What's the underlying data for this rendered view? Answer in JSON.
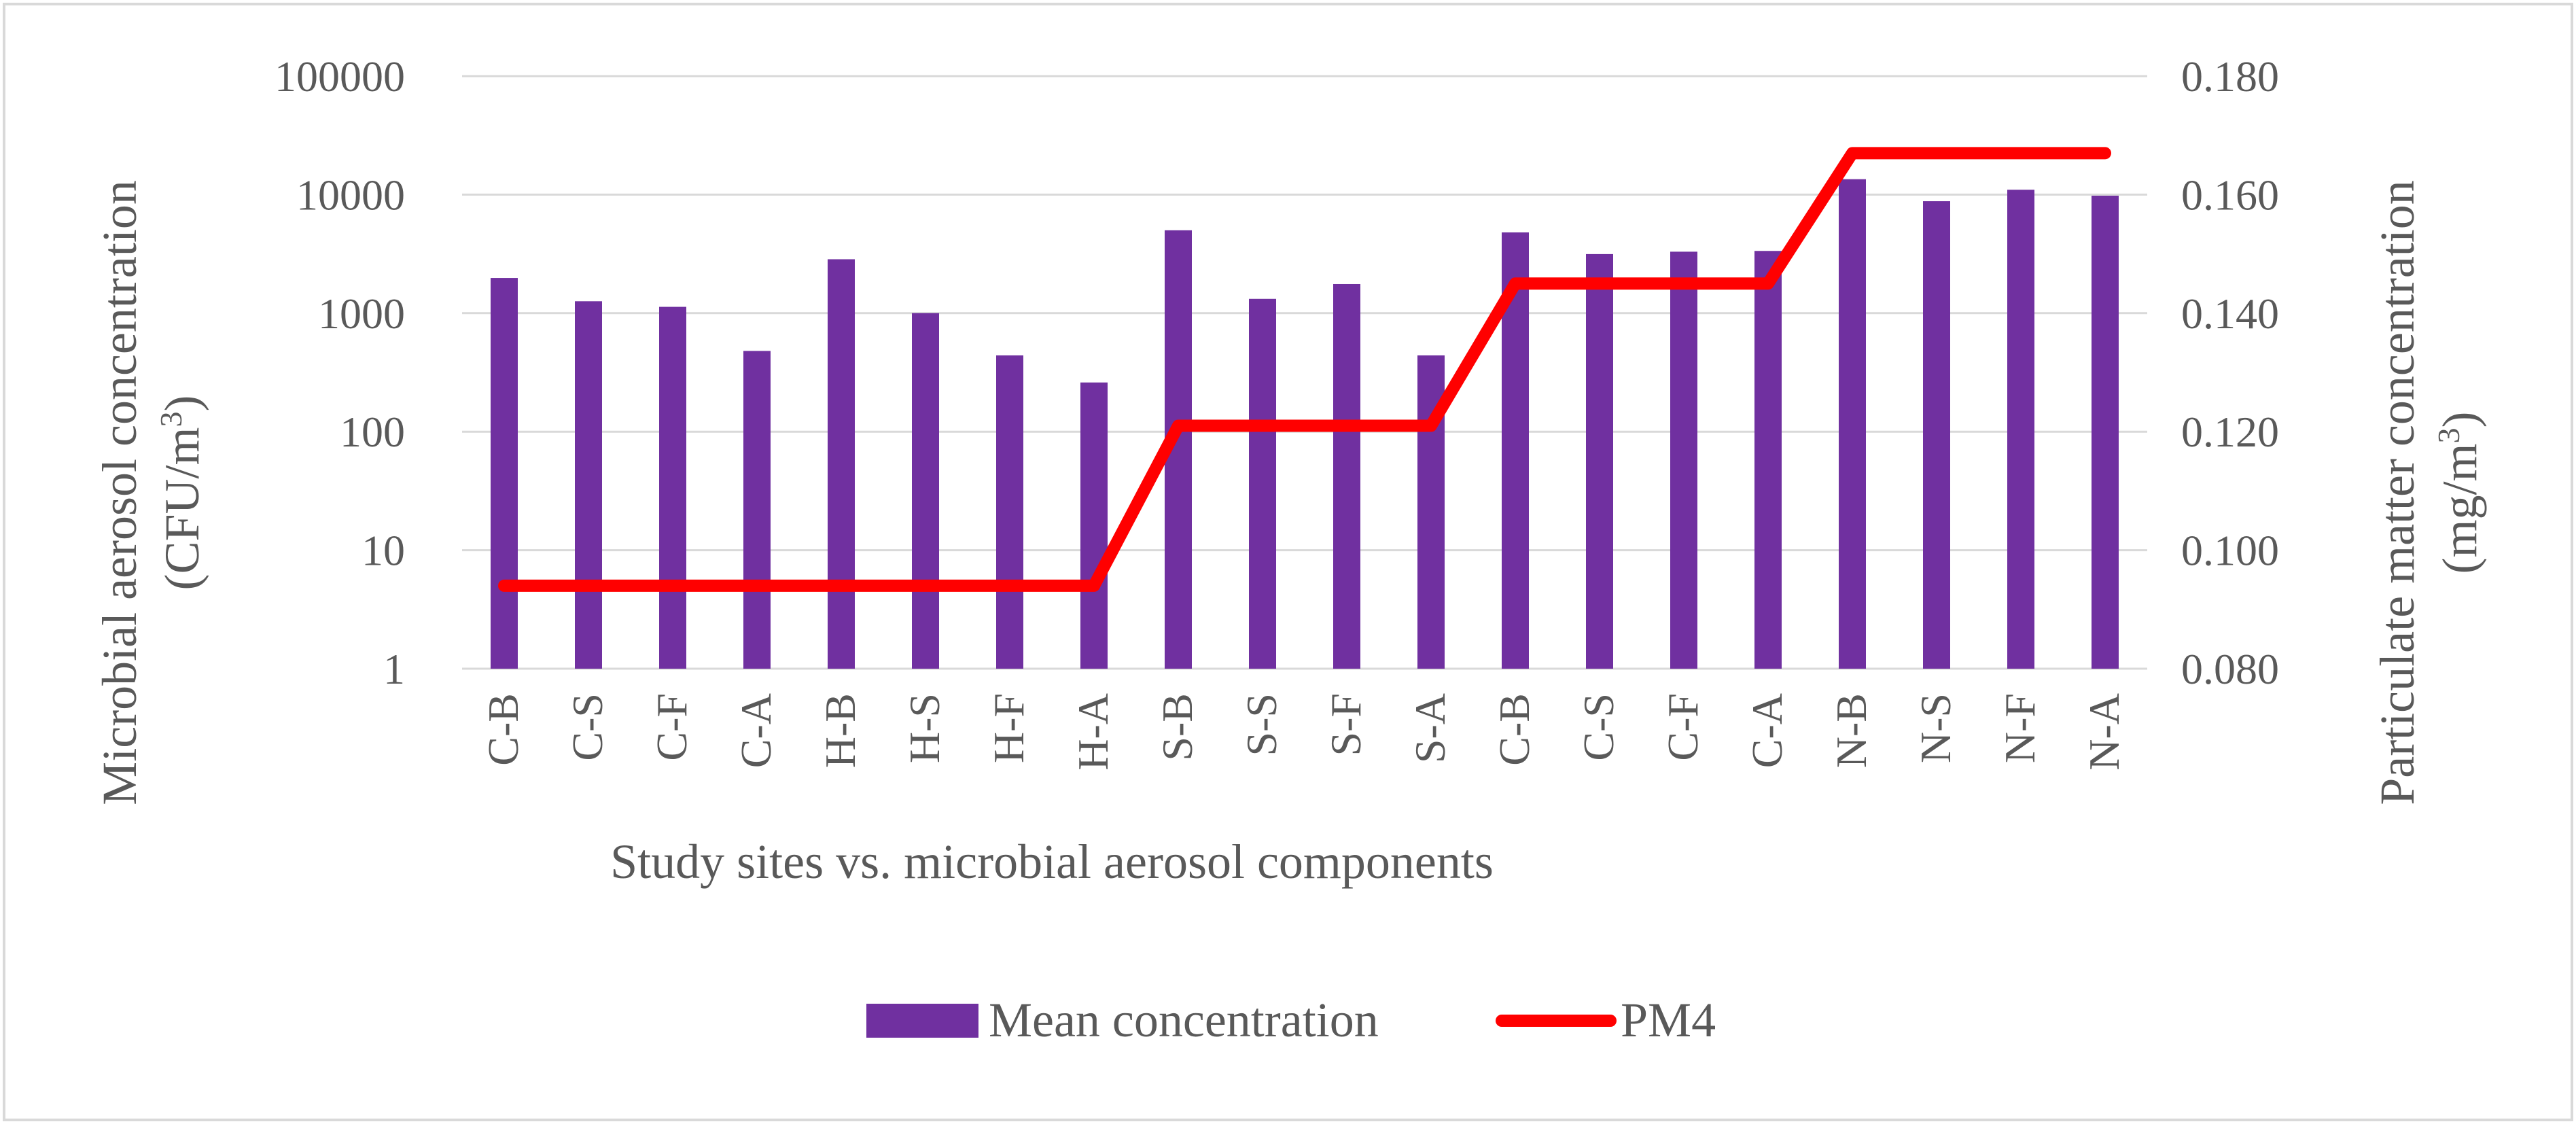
{
  "chart_data": {
    "type": "bar",
    "categories": [
      "C-B",
      "C-S",
      "C-F",
      "C-A",
      "H-B",
      "H-S",
      "H-F",
      "H-A",
      "S-B",
      "S-S",
      "S-F",
      "S-A",
      "C-B",
      "C-S",
      "C-F",
      "C-A",
      "N-B",
      "N-S",
      "N-F",
      "N-A"
    ],
    "series": [
      {
        "name": "Mean concentration",
        "type": "bar",
        "axis": "left",
        "color": "#7030A0",
        "values": [
          1980,
          1260,
          1130,
          480,
          2850,
          1000,
          440,
          260,
          5000,
          1320,
          1760,
          440,
          4800,
          3150,
          3300,
          3350,
          13500,
          8800,
          11000,
          9800
        ]
      },
      {
        "name": "PM4",
        "type": "line",
        "axis": "right",
        "color": "#FF0000",
        "values": [
          0.094,
          0.094,
          0.094,
          0.094,
          0.094,
          0.094,
          0.094,
          0.094,
          0.121,
          0.121,
          0.121,
          0.121,
          0.145,
          0.145,
          0.145,
          0.145,
          0.167,
          0.167,
          0.167,
          0.167
        ]
      }
    ],
    "left_axis": {
      "scale": "log",
      "ylim": [
        1,
        100000
      ],
      "ticks": [
        "1",
        "10",
        "100",
        "1000",
        "10000",
        "100000"
      ],
      "title_line1": "Microbial aerosol concentration",
      "title_line2_prefix": "(CFU/m",
      "title_line2_sup": "3",
      "title_line2_suffix": ")"
    },
    "right_axis": {
      "scale": "linear",
      "ylim": [
        0.08,
        0.18
      ],
      "ticks": [
        "0.080",
        "0.100",
        "0.120",
        "0.140",
        "0.160",
        "0.180"
      ],
      "title_line1": "Particulate matter concentration",
      "title_line2_prefix": "(mg/m",
      "title_line2_sup": "3",
      "title_line2_suffix": ")"
    },
    "xlabel": "Study sites vs. microbial aerosol components",
    "legend": {
      "placement": "bottom",
      "items": [
        "Mean concentration",
        "PM4"
      ]
    },
    "grid": true,
    "colors": {
      "frame": "#d9d9d9",
      "gridline": "#d9d9d9",
      "text": "#595959"
    }
  }
}
